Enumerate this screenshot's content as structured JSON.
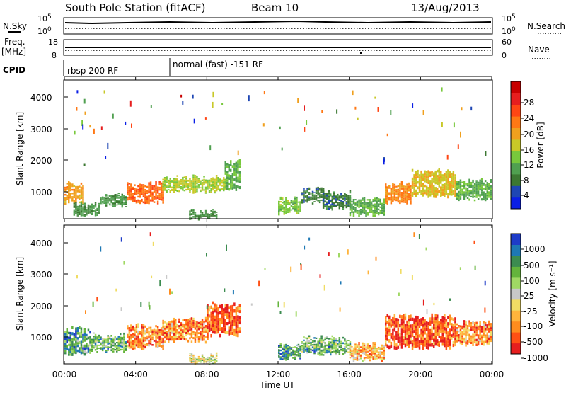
{
  "header": {
    "station": "South Pole Station (fitACF)",
    "beam": "Beam 10",
    "date": "13/Aug/2013"
  },
  "strip": {
    "nsky_label": "N.Sky",
    "nsearch_label": "N.Search",
    "freq_label_1": "Freq.",
    "freq_label_2": "[MHz]",
    "nave_label": "Nave",
    "cpid_label": "CPID",
    "noise_ticks_left": [
      "10^5",
      "10^0"
    ],
    "noise_ticks_right": [
      "10^5",
      "10^0"
    ],
    "freq_ticks": [
      "18",
      "8"
    ],
    "nave_ticks": [
      "60",
      "0"
    ],
    "cpid_segments": [
      {
        "label": "rbsp 200 RF",
        "start": "00:00",
        "end": "06:00"
      },
      {
        "label": "normal (fast) -151 RF",
        "start": "06:00",
        "end": "24:00"
      }
    ]
  },
  "chart_data": [
    {
      "type": "heatmap",
      "title": "Power",
      "ylabel": "Slant Range [km]",
      "ylim": [
        200,
        4600
      ],
      "yticks": [
        "1000",
        "2000",
        "3000",
        "4000"
      ],
      "xlim_hours": [
        0,
        24
      ],
      "colorbar_label": "Power [dB]",
      "colorbar_ticks": [
        "4",
        "8",
        "12",
        "16",
        "20",
        "24",
        "28"
      ],
      "colorbar_range": [
        0,
        32
      ],
      "colors": [
        "#0a1ee6",
        "#1e46b4",
        "#3c7832",
        "#50a050",
        "#78c83c",
        "#c8c828",
        "#f0a01e",
        "#ff7814",
        "#ff4614",
        "#e61e1e",
        "#c80000"
      ],
      "bands": [
        {
          "t0": 0.0,
          "t1": 1.0,
          "lo": 700,
          "hi": 1300,
          "level": 18
        },
        {
          "t0": 0.5,
          "t1": 2.0,
          "lo": 300,
          "hi": 650,
          "level": 8
        },
        {
          "t0": 2.0,
          "t1": 3.5,
          "lo": 600,
          "hi": 950,
          "level": 8
        },
        {
          "t0": 3.5,
          "t1": 5.5,
          "lo": 700,
          "hi": 1300,
          "level": 22
        },
        {
          "t0": 5.5,
          "t1": 9.0,
          "lo": 1050,
          "hi": 1500,
          "level": 14
        },
        {
          "t0": 9.0,
          "t1": 9.8,
          "lo": 1100,
          "hi": 2000,
          "level": 10
        },
        {
          "t0": 7.0,
          "t1": 8.5,
          "lo": 200,
          "hi": 400,
          "level": 8
        },
        {
          "t0": 12.0,
          "t1": 13.2,
          "lo": 350,
          "hi": 800,
          "level": 12
        },
        {
          "t0": 13.3,
          "t1": 14.5,
          "lo": 700,
          "hi": 1100,
          "level": 6
        },
        {
          "t0": 14.5,
          "t1": 16.0,
          "lo": 500,
          "hi": 1000,
          "level": 6
        },
        {
          "t0": 16.0,
          "t1": 18.0,
          "lo": 300,
          "hi": 800,
          "level": 10
        },
        {
          "t0": 18.0,
          "t1": 19.5,
          "lo": 700,
          "hi": 1300,
          "level": 20
        },
        {
          "t0": 19.5,
          "t1": 22.0,
          "lo": 900,
          "hi": 1700,
          "level": 16
        },
        {
          "t0": 22.0,
          "t1": 24.0,
          "lo": 800,
          "hi": 1400,
          "level": 10
        }
      ]
    },
    {
      "type": "heatmap",
      "title": "Velocity",
      "ylabel": "Slant Range [km]",
      "ylim": [
        200,
        4600
      ],
      "yticks": [
        "1000",
        "2000",
        "3000",
        "4000"
      ],
      "xlim_hours": [
        0,
        24
      ],
      "colorbar_label": "Velocity [m s⁻¹]",
      "colorbar_ticks": [
        "1000",
        "500",
        "100",
        "25",
        "-25",
        "-100",
        "-500",
        "-1000"
      ],
      "colors": [
        "#1e3cc8",
        "#1e78b4",
        "#3c8c50",
        "#64b43c",
        "#a0d864",
        "#c8c8c8",
        "#f0dc64",
        "#ffb43c",
        "#ff8c1e",
        "#ff5014",
        "#e61e1e"
      ],
      "bands": [
        {
          "t0": 0.0,
          "t1": 1.5,
          "lo": 500,
          "hi": 1300,
          "level": 2
        },
        {
          "t0": 1.5,
          "t1": 3.5,
          "lo": 600,
          "hi": 1100,
          "level": 3
        },
        {
          "t0": 3.5,
          "t1": 5.5,
          "lo": 700,
          "hi": 1400,
          "level": 8
        },
        {
          "t0": 5.5,
          "t1": 8.0,
          "lo": 900,
          "hi": 1600,
          "level": 8
        },
        {
          "t0": 8.0,
          "t1": 9.8,
          "lo": 1100,
          "hi": 2100,
          "level": 9
        },
        {
          "t0": 7.0,
          "t1": 8.5,
          "lo": 200,
          "hi": 450,
          "level": 5
        },
        {
          "t0": 12.0,
          "t1": 13.2,
          "lo": 350,
          "hi": 800,
          "level": 2
        },
        {
          "t0": 13.3,
          "t1": 16.0,
          "lo": 500,
          "hi": 1000,
          "level": 3
        },
        {
          "t0": 16.0,
          "t1": 18.0,
          "lo": 300,
          "hi": 800,
          "level": 7
        },
        {
          "t0": 18.0,
          "t1": 22.0,
          "lo": 700,
          "hi": 1700,
          "level": 9
        },
        {
          "t0": 22.0,
          "t1": 24.0,
          "lo": 800,
          "hi": 1500,
          "level": 8
        }
      ]
    }
  ],
  "xaxis": {
    "ticks": [
      "00:00",
      "04:00",
      "08:00",
      "12:00",
      "16:00",
      "20:00",
      "00:00"
    ],
    "label": "Time UT"
  }
}
